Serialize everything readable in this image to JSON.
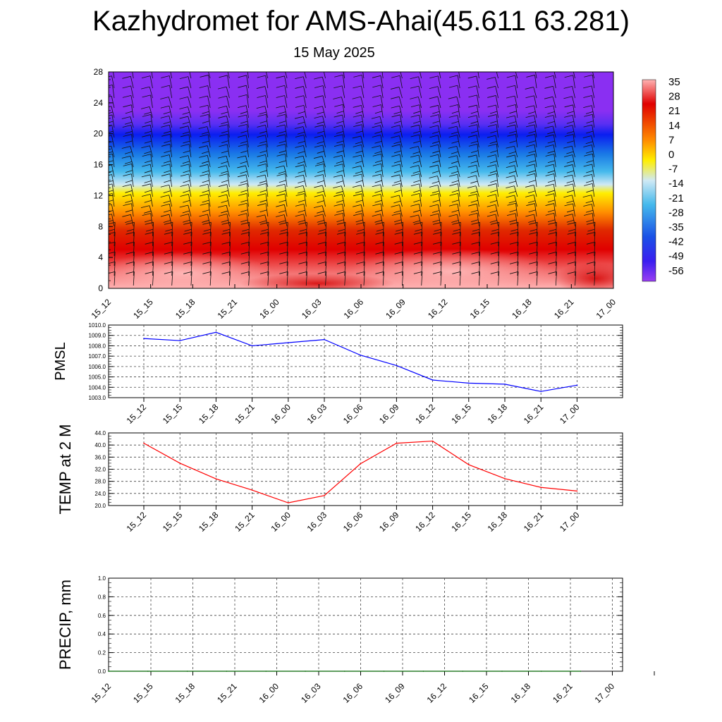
{
  "header": {
    "title": "Kazhydromet for AMS-Ahai(45.611 63.281)",
    "subtitle": "15 May 2025"
  },
  "chart_data": [
    {
      "type": "heatmap",
      "name": "cross-section",
      "x": [
        "15_12",
        "15_15",
        "15_18",
        "15_21",
        "16_00",
        "16_03",
        "16_06",
        "16_09",
        "16_12",
        "16_15",
        "16_18",
        "16_21",
        "17_00"
      ],
      "ylim": [
        0,
        28
      ],
      "yticks": [
        "0",
        "4",
        "8",
        "12",
        "16",
        "20",
        "24",
        "28"
      ],
      "colorbar": {
        "labels": [
          "35",
          "28",
          "21",
          "14",
          "7",
          "0",
          "-7",
          "-14",
          "-21",
          "-28",
          "-35",
          "-42",
          "-49",
          "-56"
        ],
        "range": [
          -60,
          38
        ]
      },
      "wind_barbs": true
    },
    {
      "type": "line",
      "ylabel": "PMSL",
      "x": [
        "15_12",
        "15_15",
        "15_18",
        "15_21",
        "16_00",
        "16_03",
        "16_06",
        "16_09",
        "16_12",
        "16_15",
        "16_18",
        "16_21",
        "17_00"
      ],
      "values": [
        1008.7,
        1008.5,
        1009.3,
        1008.0,
        1008.3,
        1008.6,
        1007.1,
        1006.1,
        1004.7,
        1004.4,
        1004.3,
        1003.6,
        1004.2
      ],
      "ylim": [
        1003.0,
        1010.0
      ],
      "yticks": [
        "1003.0",
        "1004.0",
        "1005.0",
        "1006.0",
        "1007.0",
        "1008.0",
        "1009.0",
        "1010.0"
      ],
      "color": "#0000ff",
      "grid": true
    },
    {
      "type": "line",
      "ylabel": "TEMP at 2 M",
      "x": [
        "15_12",
        "15_15",
        "15_18",
        "15_21",
        "16_00",
        "16_03",
        "16_06",
        "16_09",
        "16_12",
        "16_15",
        "16_18",
        "16_21",
        "17_00"
      ],
      "values": [
        40.6,
        34.0,
        28.8,
        25.1,
        20.9,
        23.3,
        33.8,
        40.6,
        41.3,
        33.5,
        28.9,
        26.0,
        24.8
      ],
      "ylim": [
        20.0,
        44.0
      ],
      "yticks": [
        "20.0",
        "24.0",
        "28.0",
        "32.0",
        "36.0",
        "40.0",
        "44.0"
      ],
      "color": "#ff0000",
      "grid": true
    },
    {
      "type": "line",
      "ylabel": "PRECIP, mm",
      "x": [
        "15_12",
        "15_15",
        "15_18",
        "15_21",
        "16_00",
        "16_03",
        "16_06",
        "16_09",
        "16_12",
        "16_15",
        "16_18",
        "16_21",
        "17_00"
      ],
      "values": [
        0,
        0,
        0,
        0,
        0,
        0,
        0,
        0,
        0,
        0,
        0,
        0,
        0
      ],
      "ylim": [
        0.0,
        1.0
      ],
      "yticks": [
        "0.0",
        "0.2",
        "0.4",
        "0.6",
        "0.8",
        "1.0"
      ],
      "color": "#006400",
      "grid": true
    }
  ]
}
